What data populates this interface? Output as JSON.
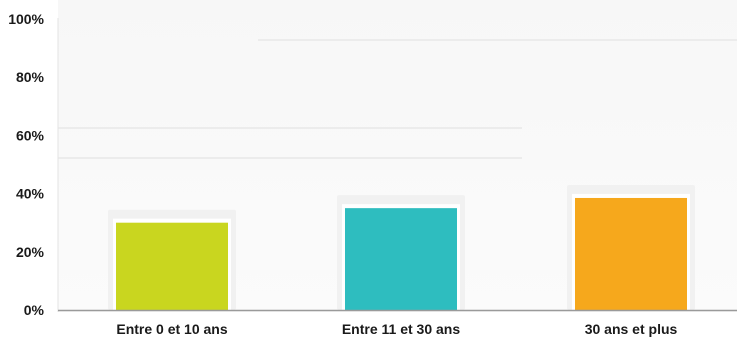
{
  "chart_data": {
    "type": "bar",
    "title": "",
    "xlabel": "",
    "ylabel": "",
    "categories": [
      "Entre 0 et 10 ans",
      "Entre 11 et 30 ans",
      "30 ans et plus"
    ],
    "values": [
      30,
      35,
      38.5
    ],
    "value_unit": "%",
    "ylim": [
      0,
      100
    ],
    "yticks": [
      0,
      20,
      40,
      60,
      80,
      100
    ],
    "ytick_labels": [
      "0%",
      "20%",
      "40%",
      "60%",
      "80%",
      "100%"
    ],
    "colors": [
      "#c9d61f",
      "#2ebdbf",
      "#f6a81c"
    ],
    "grid": false,
    "legend": "none"
  }
}
